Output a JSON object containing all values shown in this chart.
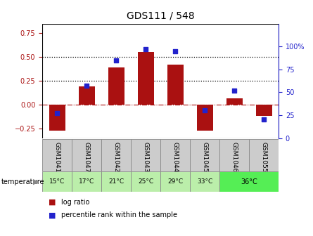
{
  "title": "GDS111 / 548",
  "samples": [
    "GSM1041",
    "GSM1047",
    "GSM1042",
    "GSM1043",
    "GSM1044",
    "GSM1045",
    "GSM1046",
    "GSM1055"
  ],
  "log_ratios": [
    -0.27,
    0.19,
    0.39,
    0.55,
    0.42,
    -0.27,
    0.07,
    -0.12
  ],
  "percentile_ranks": [
    27,
    57,
    85,
    97,
    95,
    30,
    52,
    20
  ],
  "bar_color": "#aa1111",
  "dot_color": "#2222cc",
  "ylim_left": [
    -0.35,
    0.85
  ],
  "ylim_right": [
    0,
    125
  ],
  "yticks_left": [
    -0.25,
    0.0,
    0.25,
    0.5,
    0.75
  ],
  "yticks_right": [
    0,
    25,
    50,
    75,
    100
  ],
  "hlines": [
    0.25,
    0.5
  ],
  "sample_temps": [
    "15°C",
    "17°C",
    "21°C",
    "25°C",
    "29°C",
    "33°C",
    "36°C",
    "36°C"
  ],
  "temp_color_light": "#bbeeaa",
  "temp_color_bright": "#55ee55",
  "sample_gray": "#cccccc",
  "border_color": "#888888"
}
